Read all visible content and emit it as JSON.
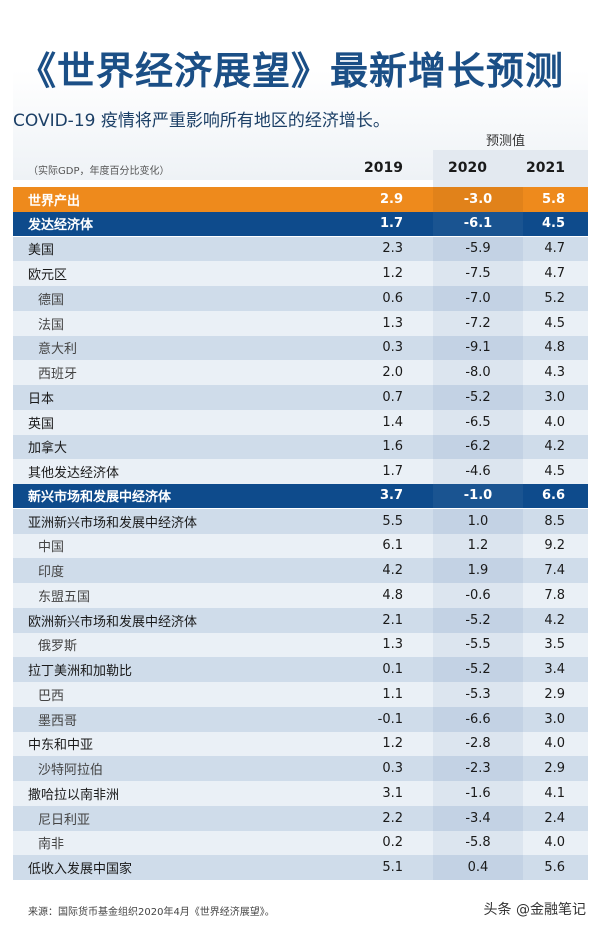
{
  "header": {
    "title": "《世界经济展望》最新增长预测",
    "subtitle": "COVID-19 疫情将严重影响所有地区的经济增长。",
    "forecast_label": "预测值",
    "unit_label": "（实际GDP，年度百分比变化）",
    "years": [
      "2019",
      "2020",
      "2021"
    ]
  },
  "colors": {
    "world": "#ee8a1c",
    "group": "#0e4b8c",
    "title": "#1b4f86"
  },
  "chart_data": {
    "type": "table",
    "columns": [
      "2019",
      "2020",
      "2021"
    ],
    "rows": [
      {
        "name": "世界产出",
        "style": "world",
        "values": [
          "2.9",
          "-3.0",
          "5.8"
        ]
      },
      {
        "name": "发达经济体",
        "style": "group",
        "values": [
          "1.7",
          "-6.1",
          "4.5"
        ]
      },
      {
        "name": "美国",
        "style": "main",
        "values": [
          "2.3",
          "-5.9",
          "4.7"
        ]
      },
      {
        "name": "欧元区",
        "style": "main",
        "values": [
          "1.2",
          "-7.5",
          "4.7"
        ]
      },
      {
        "name": "德国",
        "style": "sub",
        "values": [
          "0.6",
          "-7.0",
          "5.2"
        ]
      },
      {
        "name": "法国",
        "style": "sub",
        "values": [
          "1.3",
          "-7.2",
          "4.5"
        ]
      },
      {
        "name": "意大利",
        "style": "sub",
        "values": [
          "0.3",
          "-9.1",
          "4.8"
        ]
      },
      {
        "name": "西班牙",
        "style": "sub",
        "values": [
          "2.0",
          "-8.0",
          "4.3"
        ]
      },
      {
        "name": "日本",
        "style": "main",
        "values": [
          "0.7",
          "-5.2",
          "3.0"
        ]
      },
      {
        "name": "英国",
        "style": "main",
        "values": [
          "1.4",
          "-6.5",
          "4.0"
        ]
      },
      {
        "name": "加拿大",
        "style": "main",
        "values": [
          "1.6",
          "-6.2",
          "4.2"
        ]
      },
      {
        "name": "其他发达经济体",
        "style": "main",
        "values": [
          "1.7",
          "-4.6",
          "4.5"
        ]
      },
      {
        "name": "新兴市场和发展中经济体",
        "style": "group",
        "values": [
          "3.7",
          "-1.0",
          "6.6"
        ]
      },
      {
        "name": "亚洲新兴市场和发展中经济体",
        "style": "main",
        "values": [
          "5.5",
          "1.0",
          "8.5"
        ]
      },
      {
        "name": "中国",
        "style": "sub",
        "values": [
          "6.1",
          "1.2",
          "9.2"
        ]
      },
      {
        "name": "印度",
        "style": "sub",
        "values": [
          "4.2",
          "1.9",
          "7.4"
        ]
      },
      {
        "name": "东盟五国",
        "style": "sub",
        "values": [
          "4.8",
          "-0.6",
          "7.8"
        ]
      },
      {
        "name": "欧洲新兴市场和发展中经济体",
        "style": "main",
        "values": [
          "2.1",
          "-5.2",
          "4.2"
        ]
      },
      {
        "name": "俄罗斯",
        "style": "sub",
        "values": [
          "1.3",
          "-5.5",
          "3.5"
        ]
      },
      {
        "name": "拉丁美洲和加勒比",
        "style": "main",
        "values": [
          "0.1",
          "-5.2",
          "3.4"
        ]
      },
      {
        "name": "巴西",
        "style": "sub",
        "values": [
          "1.1",
          "-5.3",
          "2.9"
        ]
      },
      {
        "name": "墨西哥",
        "style": "sub",
        "values": [
          "-0.1",
          "-6.6",
          "3.0"
        ]
      },
      {
        "name": "中东和中亚",
        "style": "main",
        "values": [
          "1.2",
          "-2.8",
          "4.0"
        ]
      },
      {
        "name": "沙特阿拉伯",
        "style": "sub",
        "values": [
          "0.3",
          "-2.3",
          "2.9"
        ]
      },
      {
        "name": "撒哈拉以南非洲",
        "style": "main",
        "values": [
          "3.1",
          "-1.6",
          "4.1"
        ]
      },
      {
        "name": "尼日利亚",
        "style": "sub",
        "values": [
          "2.2",
          "-3.4",
          "2.4"
        ]
      },
      {
        "name": "南非",
        "style": "sub",
        "values": [
          "0.2",
          "-5.8",
          "4.0"
        ]
      },
      {
        "name": "低收入发展中国家",
        "style": "main",
        "values": [
          "5.1",
          "0.4",
          "5.6"
        ]
      }
    ]
  },
  "footer": {
    "source": "来源：国际货币基金组织2020年4月《世界经济展望》。",
    "watermark": "头条 @金融笔记"
  }
}
